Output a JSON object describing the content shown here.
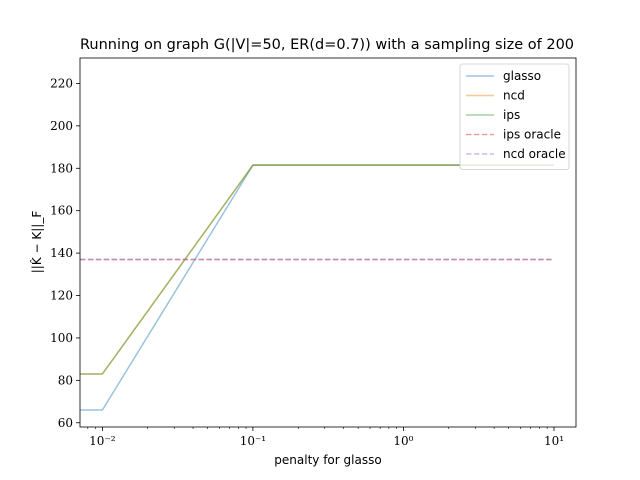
{
  "chart_data": {
    "type": "line",
    "title": "Running on graph G(|V|=50, ER(d=0.7)) with a sampling size of 200",
    "xlabel": "penalty for glasso",
    "ylabel": "||K̂ − K||_F",
    "xscale": "log",
    "xlim": [
      0.0071,
      14.0
    ],
    "ylim": [
      58,
      232
    ],
    "grid": false,
    "legend_position": "top-right",
    "x_ticks": [
      {
        "value": 0.01,
        "label": "10⁻²"
      },
      {
        "value": 0.1,
        "label": "10⁻¹"
      },
      {
        "value": 1,
        "label": "10⁰"
      },
      {
        "value": 10,
        "label": "10¹"
      }
    ],
    "y_ticks": [
      60,
      80,
      100,
      120,
      140,
      160,
      180,
      200,
      220
    ],
    "series": [
      {
        "name": "glasso",
        "color": "#1f77b4",
        "dash": false,
        "x": [
          0.0071,
          0.01,
          0.1,
          10
        ],
        "y": [
          66,
          66,
          181.5,
          181.5
        ]
      },
      {
        "name": "ncd",
        "color": "#ff7f0e",
        "dash": false,
        "x": [
          0.0071,
          0.01,
          0.1,
          10
        ],
        "y": [
          83,
          83,
          181.5,
          181.5
        ]
      },
      {
        "name": "ips",
        "color": "#2ca02c",
        "dash": false,
        "x": [
          0.0071,
          0.01,
          0.1,
          10
        ],
        "y": [
          83,
          83,
          181.5,
          181.5
        ]
      },
      {
        "name": "ips oracle",
        "color": "#d62728",
        "dash": true,
        "x": [
          0.0071,
          10
        ],
        "y": [
          137,
          137
        ]
      },
      {
        "name": "ncd oracle",
        "color": "#9467bd",
        "dash": true,
        "x": [
          0.0071,
          10
        ],
        "y": [
          137,
          137
        ]
      }
    ]
  }
}
